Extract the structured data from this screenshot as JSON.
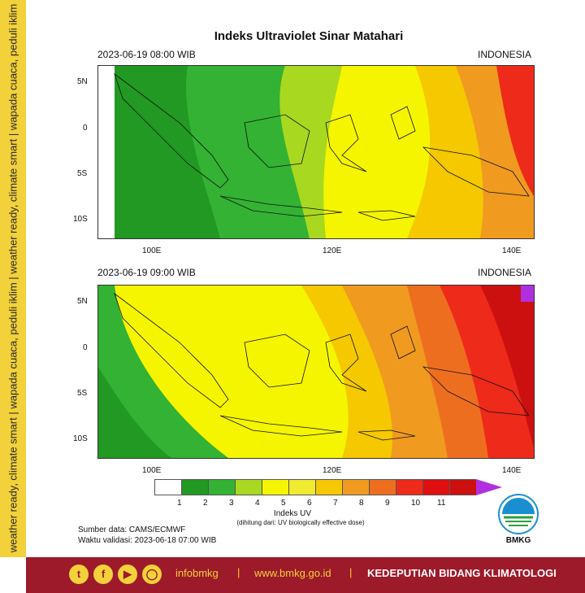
{
  "side_tagline": "weather ready, climate smart | wapada cuaca, peduli iklim | weather ready, climate smart | wapada cuaca, peduli iklim",
  "title": "Indeks Ultraviolet Sinar Matahari",
  "maps": [
    {
      "time_label": "2023-06-19  08:00 WIB",
      "region_label": "INDONESIA"
    },
    {
      "time_label": "2023-06-19  09:00 WIB",
      "region_label": "INDONESIA"
    }
  ],
  "lat_ticks": [
    "5N",
    "0",
    "5S",
    "10S"
  ],
  "lon_ticks": [
    "100E",
    "120E",
    "140E"
  ],
  "colorbar": {
    "title": "Indeks UV",
    "note": "(dihitung dari: UV biologically effective dose)",
    "ticks": [
      "1",
      "2",
      "3",
      "4",
      "5",
      "6",
      "7",
      "8",
      "9",
      "10",
      "11"
    ],
    "colors": [
      "#ffffff",
      "#229922",
      "#33b233",
      "#a8d820",
      "#f5f500",
      "#f0ea30",
      "#f5c800",
      "#f09a20",
      "#ee6e20",
      "#ee2a1a",
      "#e01010",
      "#cc1010",
      "#b030e0"
    ]
  },
  "source": {
    "line1": "Sumber data: CAMS/ECMWF",
    "line2": "Waktu validasi: 2023-06-18 07:00 WIB"
  },
  "logo_text": "BMKG",
  "footer": {
    "handle": "infobmkg",
    "sep1": "|",
    "website": "www.bmkg.go.id",
    "sep2": "|",
    "department": "KEDEPUTIAN BIDANG KLIMATOLOGI"
  },
  "social_icons": [
    "twitter-icon",
    "facebook-icon",
    "youtube-icon",
    "instagram-icon"
  ]
}
